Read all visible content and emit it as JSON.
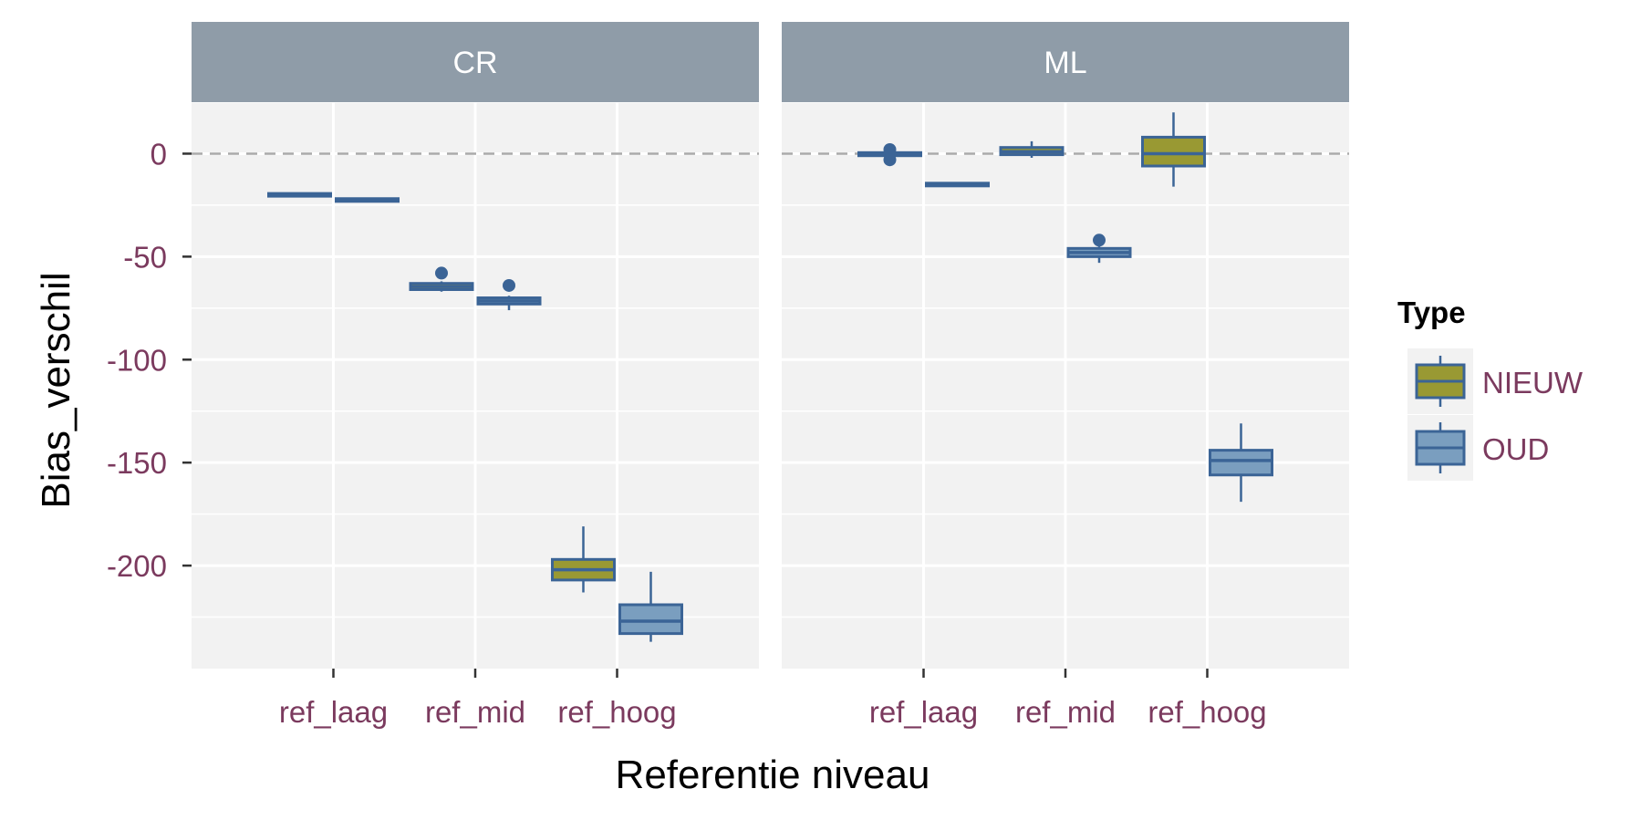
{
  "chart_data": {
    "type": "boxplot",
    "xlabel": "Referentie niveau",
    "ylabel": "Bias_verschil",
    "ylim": [
      -250,
      25
    ],
    "y_ticks": [
      0,
      -50,
      -100,
      -150,
      -200
    ],
    "y_tick_labels": [
      "0",
      "-50",
      "-100",
      "-150",
      "-200"
    ],
    "reference_line": 0,
    "categories": [
      "ref_laag",
      "ref_mid",
      "ref_hoog"
    ],
    "facets": [
      {
        "name": "CR",
        "groups": [
          {
            "category": "ref_laag",
            "type": "NIEUW",
            "min": -20.5,
            "q1": -20.3,
            "median": -20.0,
            "q3": -19.7,
            "max": -19.5,
            "outliers": []
          },
          {
            "category": "ref_laag",
            "type": "OUD",
            "min": -23.0,
            "q1": -22.8,
            "median": -22.5,
            "q3": -22.2,
            "max": -22.0,
            "outliers": []
          },
          {
            "category": "ref_mid",
            "type": "NIEUW",
            "min": -67,
            "q1": -66,
            "median": -64.5,
            "q3": -63,
            "max": -62,
            "outliers": [
              -58
            ]
          },
          {
            "category": "ref_mid",
            "type": "OUD",
            "min": -76,
            "q1": -73,
            "median": -71.5,
            "q3": -70,
            "max": -69,
            "outliers": [
              -64
            ]
          },
          {
            "category": "ref_hoog",
            "type": "NIEUW",
            "min": -213,
            "q1": -207,
            "median": -202,
            "q3": -197,
            "max": -181,
            "outliers": []
          },
          {
            "category": "ref_hoog",
            "type": "OUD",
            "min": -237,
            "q1": -233,
            "median": -227,
            "q3": -219,
            "max": -203,
            "outliers": []
          }
        ]
      },
      {
        "name": "ML",
        "groups": [
          {
            "category": "ref_laag",
            "type": "NIEUW",
            "min": -2,
            "q1": -1,
            "median": -0.5,
            "q3": 0.5,
            "max": 1,
            "outliers": [
              2,
              -3
            ]
          },
          {
            "category": "ref_laag",
            "type": "OUD",
            "min": -16,
            "q1": -15.5,
            "median": -15,
            "q3": -14.5,
            "max": -14,
            "outliers": []
          },
          {
            "category": "ref_mid",
            "type": "NIEUW",
            "min": -2,
            "q1": -0.5,
            "median": 1,
            "q3": 3,
            "max": 6,
            "outliers": []
          },
          {
            "category": "ref_mid",
            "type": "OUD",
            "min": -53,
            "q1": -50,
            "median": -48,
            "q3": -46,
            "max": -45,
            "outliers": [
              -42
            ]
          },
          {
            "category": "ref_hoog",
            "type": "NIEUW",
            "min": -16,
            "q1": -6,
            "median": 0,
            "q3": 8,
            "max": 20,
            "outliers": []
          },
          {
            "category": "ref_hoog",
            "type": "OUD",
            "min": -169,
            "q1": -156,
            "median": -149,
            "q3": -144,
            "max": -131,
            "outliers": []
          }
        ]
      }
    ],
    "legend": {
      "title": "Type",
      "position": "right",
      "entries": [
        {
          "name": "NIEUW",
          "color": "#999933"
        },
        {
          "name": "OUD",
          "color": "#7a9ebf"
        }
      ]
    },
    "colors": {
      "outline": "#3b6496",
      "panel_bg": "#f2f2f2",
      "strip_bg": "#8f9ca8",
      "grid": "#ffffff",
      "reference_line": "#aaaaaa"
    },
    "grid": true
  }
}
